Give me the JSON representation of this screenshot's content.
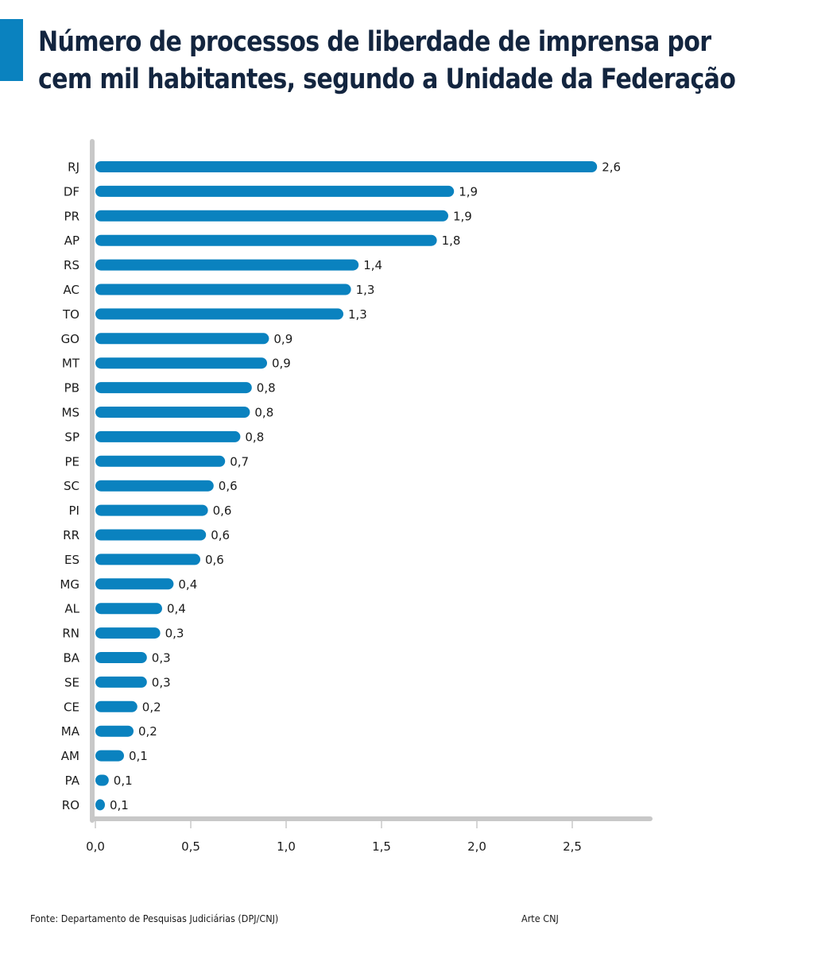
{
  "title_line1": "Número de processos de liberdade de imprensa por",
  "title_line2": "cem mil habitantes, segundo a Unidade da Federação",
  "accent_color": "#0a82bf",
  "title_color": "#13253f",
  "chart_data": {
    "type": "bar",
    "orientation": "horizontal",
    "title": "Número de processos de liberdade de imprensa por cem mil habitantes, segundo a Unidade da Federação",
    "xlabel": "",
    "ylabel": "",
    "xlim": [
      0,
      2.9
    ],
    "x_ticks": [
      0.0,
      0.5,
      1.0,
      1.5,
      2.0,
      2.5
    ],
    "x_tick_labels": [
      "0,0",
      "0,5",
      "1,0",
      "1,5",
      "2,0",
      "2,5"
    ],
    "grid": false,
    "bar_color": "#0a82bf",
    "categories": [
      "RJ",
      "DF",
      "PR",
      "AP",
      "RS",
      "AC",
      "TO",
      "GO",
      "MT",
      "PB",
      "MS",
      "SP",
      "PE",
      "SC",
      "PI",
      "RR",
      "ES",
      "MG",
      "AL",
      "RN",
      "BA",
      "SE",
      "CE",
      "MA",
      "AM",
      "PA",
      "RO"
    ],
    "values": [
      2.63,
      1.88,
      1.85,
      1.79,
      1.38,
      1.34,
      1.3,
      0.91,
      0.9,
      0.82,
      0.81,
      0.76,
      0.68,
      0.62,
      0.59,
      0.58,
      0.55,
      0.41,
      0.35,
      0.34,
      0.27,
      0.27,
      0.22,
      0.2,
      0.15,
      0.07,
      0.05
    ],
    "value_labels": [
      "2,6",
      "1,9",
      "1,9",
      "1,8",
      "1,4",
      "1,3",
      "1,3",
      "0,9",
      "0,9",
      "0,8",
      "0,8",
      "0,8",
      "0,7",
      "0,6",
      "0,6",
      "0,6",
      "0,6",
      "0,4",
      "0,4",
      "0,3",
      "0,3",
      "0,3",
      "0,2",
      "0,2",
      "0,1",
      "0,1",
      "0,1"
    ]
  },
  "source": "Fonte: Departamento de Pesquisas Judiciárias (DPJ/CNJ)",
  "credit": "Arte CNJ"
}
